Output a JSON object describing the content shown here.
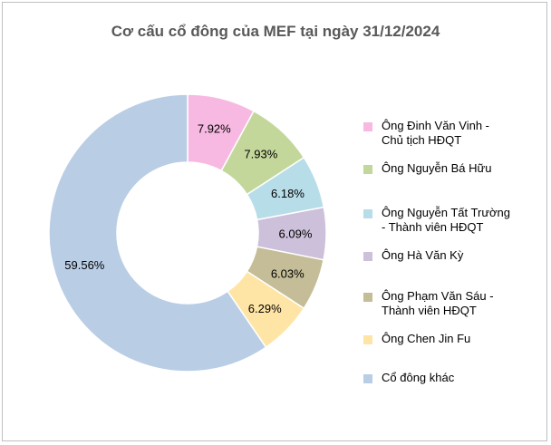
{
  "chart_data": {
    "type": "pie",
    "title": "Cơ cấu cổ đông của MEF tại ngày 31/12/2024",
    "slices": [
      {
        "label": "Ông Đinh Văn Vinh - Chủ tịch HĐQT",
        "value": 7.92,
        "display": "7.92%",
        "color": "#f7b9e1"
      },
      {
        "label": "Ông Nguyễn Bá Hữu",
        "value": 7.93,
        "display": "7.93%",
        "color": "#c4d79b"
      },
      {
        "label": "Ông Nguyễn Tất Trường - Thành viên HĐQT",
        "value": 6.18,
        "display": "6.18%",
        "color": "#b7dde8"
      },
      {
        "label": "Ông Hà Văn Kỳ",
        "value": 6.09,
        "display": "6.09%",
        "color": "#ccc0da"
      },
      {
        "label": "Ông Phạm Văn Sáu - Thành viên HĐQT",
        "value": 6.03,
        "display": "6.03%",
        "color": "#c4bd97"
      },
      {
        "label": "Ông Chen Jin Fu",
        "value": 6.29,
        "display": "6.29%",
        "color": "#ffe5a5"
      },
      {
        "label": "Cổ đông khác",
        "value": 59.56,
        "display": "59.56%",
        "color": "#b9cde5"
      }
    ],
    "legend_position": "right"
  }
}
